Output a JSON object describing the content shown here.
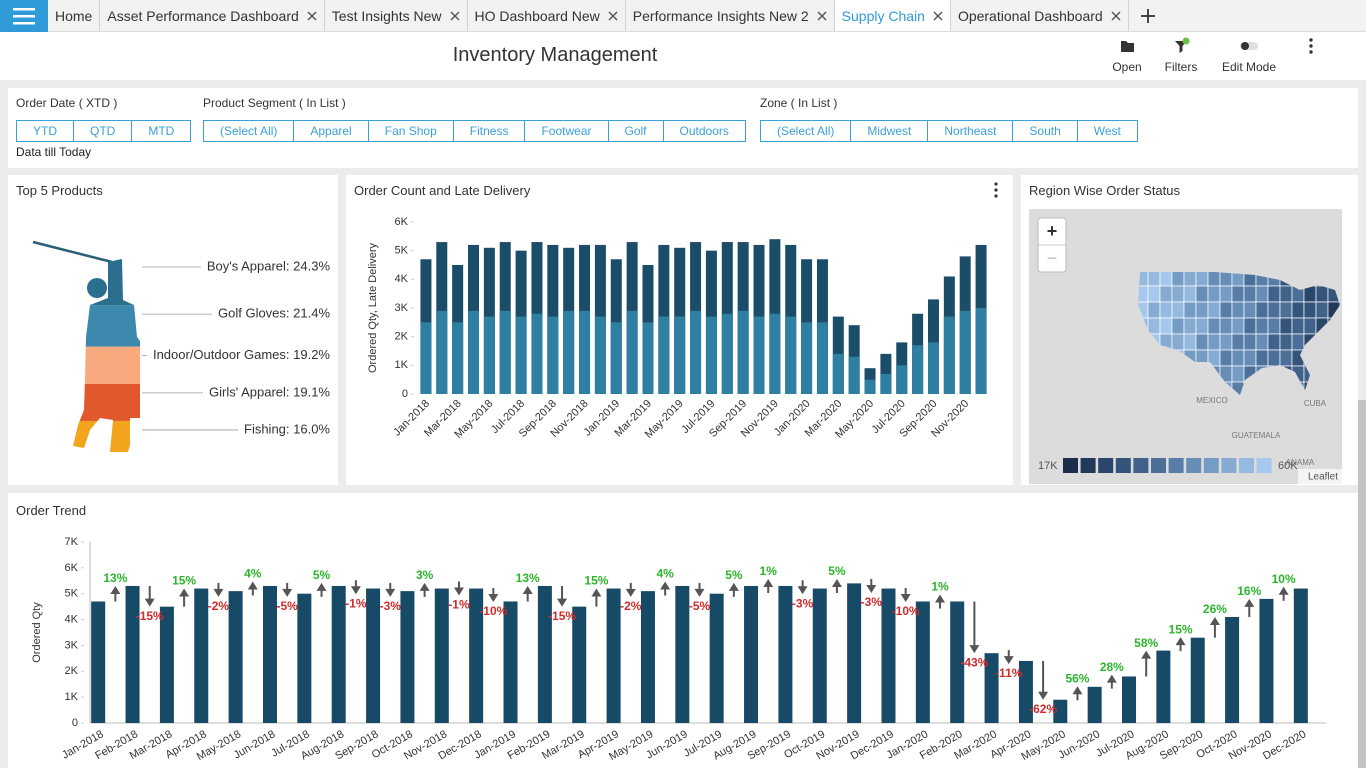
{
  "tabs": [
    "Home",
    "Asset Performance Dashboard",
    "Test Insights New",
    "HO Dashboard New",
    "Performance Insights New 2",
    "Supply Chain",
    "Operational Dashboard"
  ],
  "active_tab_index": 5,
  "title": "Inventory Management",
  "toolbar": [
    "Open",
    "Filters",
    "Edit Mode"
  ],
  "filters": [
    {
      "label": "Order Date ( XTD )",
      "options": [
        "YTD",
        "QTD",
        "MTD"
      ],
      "note": "Data till Today"
    },
    {
      "label": "Product Segment ( In List )",
      "options": [
        "(Select All)",
        "Apparel",
        "Fan Shop",
        "Fitness",
        "Footwear",
        "Golf",
        "Outdoors"
      ]
    },
    {
      "label": "Zone ( In List )",
      "options": [
        "(Select All)",
        "Midwest",
        "Northeast",
        "South",
        "West"
      ]
    }
  ],
  "top_products": {
    "title": "Top 5 Products",
    "labels": [
      "Boy's Apparel: 24.3%",
      "Golf Gloves: 21.4%",
      "Indoor/Outdoor Games: 19.2%",
      "Girls' Apparel: 19.1%",
      "Fishing: 16.0%"
    ],
    "values": [
      24.3,
      21.4,
      19.2,
      19.1,
      16.0
    ],
    "colors": [
      "#2b6e8e",
      "#3d88ad",
      "#f9a97e",
      "#e0582b",
      "#f2a41d"
    ]
  },
  "chart_data": [
    {
      "type": "bar",
      "title": "Order Count and Late Delivery",
      "y_label": "Ordered Qty, Late Delivery",
      "categories": [
        "Jan-2018",
        null,
        "Mar-2018",
        null,
        "May-2018",
        null,
        "Jul-2018",
        null,
        "Sep-2018",
        null,
        "Nov-2018",
        null,
        "Jan-2019",
        null,
        "Mar-2019",
        null,
        "May-2019",
        null,
        "Jul-2019",
        null,
        "Sep-2019",
        null,
        "Nov-2019",
        null,
        "Jan-2020",
        null,
        "Mar-2020",
        null,
        "May-2020",
        null,
        "Jul-2020",
        null,
        "Sep-2020",
        null,
        "Nov-2020",
        null
      ],
      "series": [
        {
          "color": "#1b4d69",
          "values": [
            4700,
            5300,
            4500,
            5200,
            5100,
            5300,
            5000,
            5300,
            5200,
            5100,
            5200,
            5200,
            4700,
            5300,
            4500,
            5200,
            5100,
            5300,
            5000,
            5300,
            5300,
            5200,
            5400,
            5200,
            4700,
            4700,
            2700,
            2400,
            900,
            1400,
            1800,
            2800,
            3300,
            4100,
            4800,
            5200
          ]
        },
        {
          "color": "#2f7fa2",
          "values": [
            2500,
            2900,
            2500,
            2900,
            2700,
            2900,
            2700,
            2800,
            2700,
            2900,
            2900,
            2700,
            2500,
            2900,
            2500,
            2700,
            2700,
            2900,
            2700,
            2800,
            2900,
            2700,
            2800,
            2700,
            2500,
            2500,
            1400,
            1300,
            500,
            700,
            1000,
            1700,
            1800,
            2700,
            2900,
            3000
          ]
        }
      ],
      "ylim": [
        0,
        6000
      ],
      "yticks": [
        0,
        {
          "value": 1000,
          "label": "1K"
        },
        {
          "value": 2000,
          "label": "2K"
        },
        {
          "value": 3000,
          "label": "3K"
        },
        {
          "value": 4000,
          "label": "4K"
        },
        {
          "value": 5000,
          "label": "5K"
        },
        {
          "value": 6000,
          "label": "6K"
        }
      ]
    },
    {
      "type": "bar",
      "title": "Order Trend",
      "y_label": "Ordered Qty",
      "categories": [
        "Jan-2018",
        "Feb-2018",
        "Mar-2018",
        "Apr-2018",
        "May-2018",
        "Jun-2018",
        "Jul-2018",
        "Aug-2018",
        "Sep-2018",
        "Oct-2018",
        "Nov-2018",
        "Dec-2018",
        "Jan-2019",
        "Feb-2019",
        "Mar-2019",
        "Apr-2019",
        "May-2019",
        "Jun-2019",
        "Jul-2019",
        "Aug-2019",
        "Sep-2019",
        "Oct-2019",
        "Nov-2019",
        "Dec-2019",
        "Jan-2020",
        "Feb-2020",
        "Mar-2020",
        "Apr-2020",
        "May-2020",
        "Jun-2020",
        "Jul-2020",
        "Aug-2020",
        "Sep-2020",
        "Oct-2020",
        "Nov-2020",
        "Dec-2020"
      ],
      "values": [
        4700,
        5300,
        4500,
        5200,
        5100,
        5300,
        5000,
        5300,
        5200,
        5100,
        5200,
        5200,
        4700,
        5300,
        4500,
        5200,
        5100,
        5300,
        5000,
        5300,
        5300,
        5200,
        5400,
        5200,
        4700,
        4700,
        2700,
        2400,
        900,
        1400,
        1800,
        2800,
        3300,
        4100,
        4800,
        5200
      ],
      "color": "#174a66",
      "change_values": [
        13,
        -15,
        15,
        -2,
        4,
        -5,
        5,
        -1,
        -3,
        3,
        -1,
        -10,
        13,
        -15,
        15,
        -2,
        4,
        -5,
        5,
        1,
        -3,
        5,
        -3,
        -10,
        1,
        -43,
        -11,
        -62,
        56,
        28,
        58,
        15,
        26,
        16,
        10
      ],
      "change_labels": [
        "13%",
        "-15%",
        "15%",
        "-2%",
        "4%",
        "-5%",
        "5%",
        "-1%",
        "-3%",
        "3%",
        "-1%",
        "-10%",
        "13%",
        "-15%",
        "15%",
        "-2%",
        "4%",
        "-5%",
        "5%",
        "1%",
        "-3%",
        "5%",
        "-3%",
        "-10%",
        "1%",
        "-43%",
        "-11%",
        "-62%",
        "56%",
        "28%",
        "58%",
        "15%",
        "26%",
        "16%",
        "10%"
      ],
      "up_color": "#2db52d",
      "down_color": "#d12a2a",
      "ylim": [
        0,
        7000
      ],
      "yticks": [
        0,
        {
          "value": 1000,
          "label": "1K"
        },
        {
          "value": 2000,
          "label": "2K"
        },
        {
          "value": 3000,
          "label": "3K"
        },
        {
          "value": 4000,
          "label": "4K"
        },
        {
          "value": 5000,
          "label": "5K"
        },
        {
          "value": 6000,
          "label": "6K"
        },
        {
          "value": 7000,
          "label": "7K"
        }
      ]
    }
  ],
  "map": {
    "title": "Region Wise Order Status",
    "zoom_in": "+",
    "zoom_out": "−",
    "places": [
      "MEXICO",
      "CUBA",
      "GUATEMALA",
      "ANAMA"
    ],
    "legend_min": "17K",
    "legend_max": "60K",
    "legend_colors": [
      "#1b2d4b",
      "#22395c",
      "#2a466b",
      "#34547b",
      "#3f618a",
      "#4b6f98",
      "#587ea7",
      "#668db6",
      "#759cc5",
      "#85abd2",
      "#95badf",
      "#a6c8ec"
    ],
    "attribution": "Leaflet"
  }
}
